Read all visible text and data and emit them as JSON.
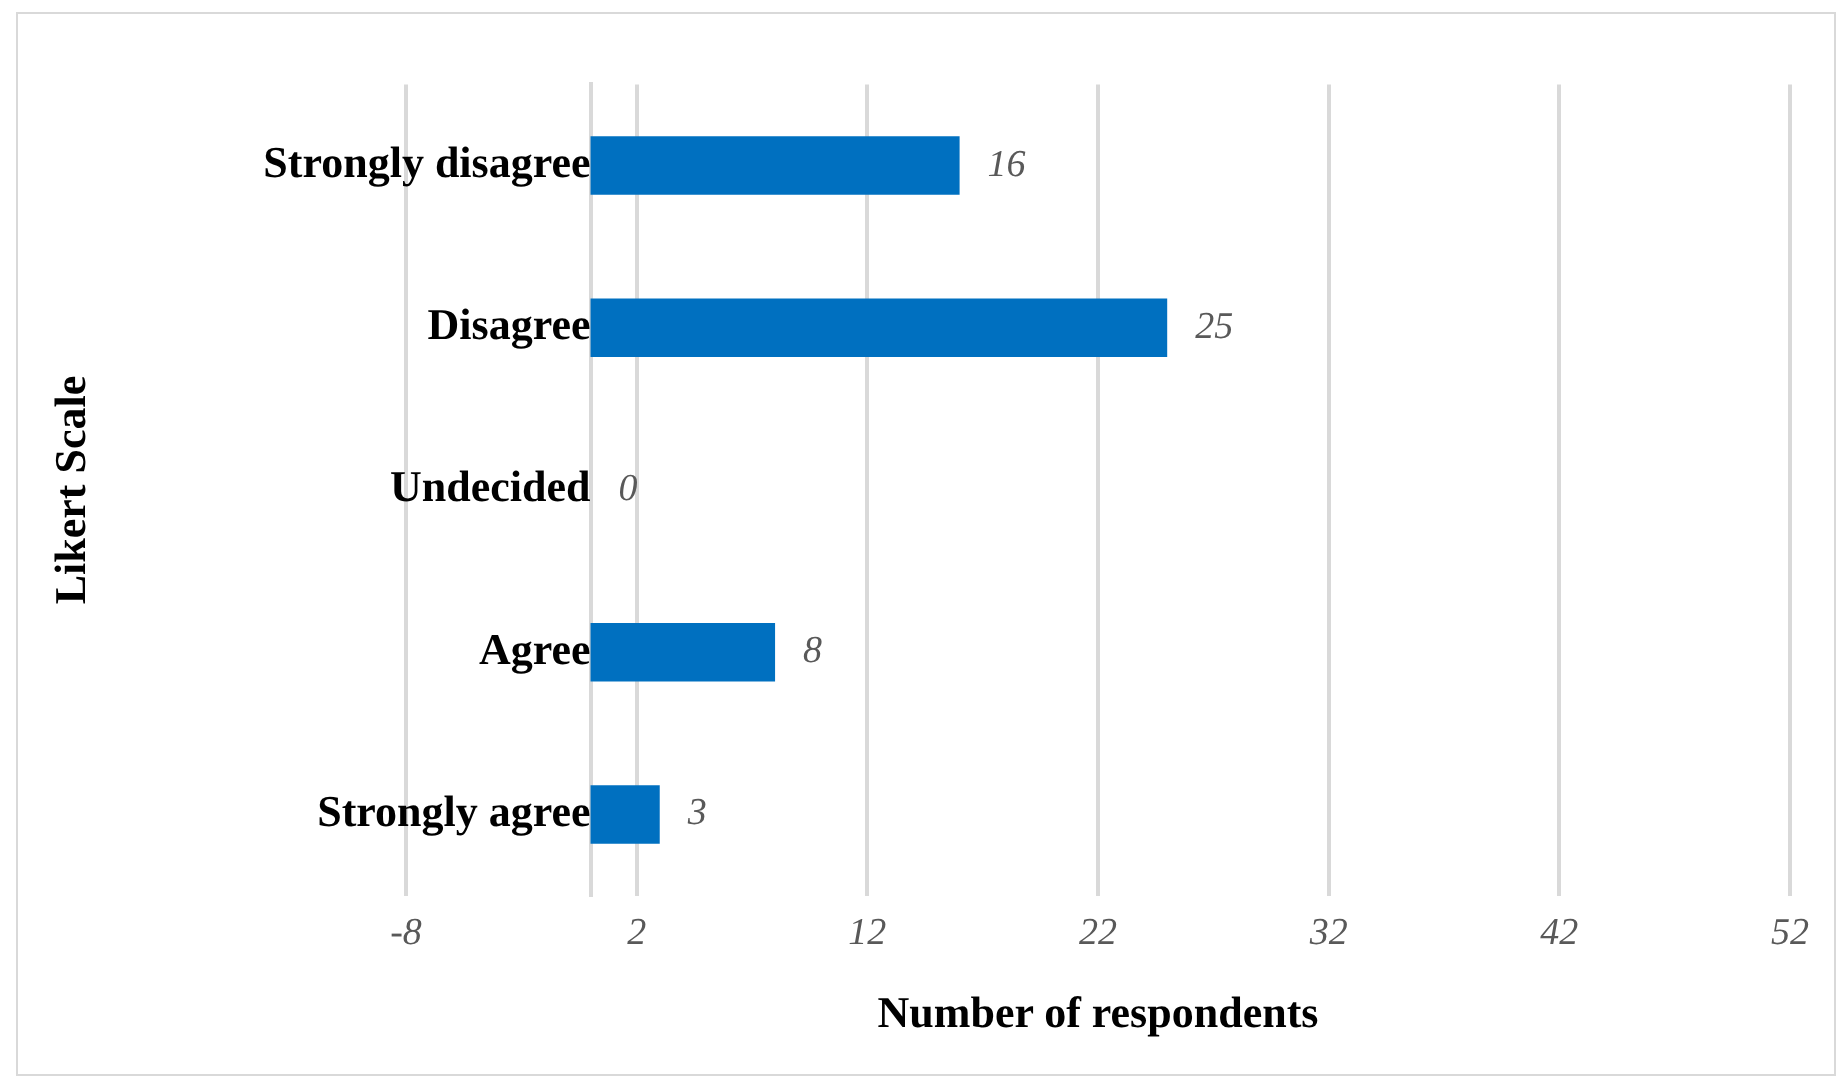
{
  "chart_data": {
    "type": "bar",
    "orientation": "horizontal",
    "categories": [
      "Strongly disagree",
      "Disagree",
      "Undecided",
      "Agree",
      "Strongly agree"
    ],
    "values": [
      16,
      25,
      0,
      8,
      3
    ],
    "color": "#0070c0",
    "xlabel": "Number of respondents",
    "ylabel": "Likert Scale",
    "xlim": [
      -8,
      52
    ],
    "xticks": [
      -8,
      2,
      12,
      22,
      32,
      42,
      52
    ],
    "grid": "x",
    "data_labels": true,
    "legend": false
  }
}
